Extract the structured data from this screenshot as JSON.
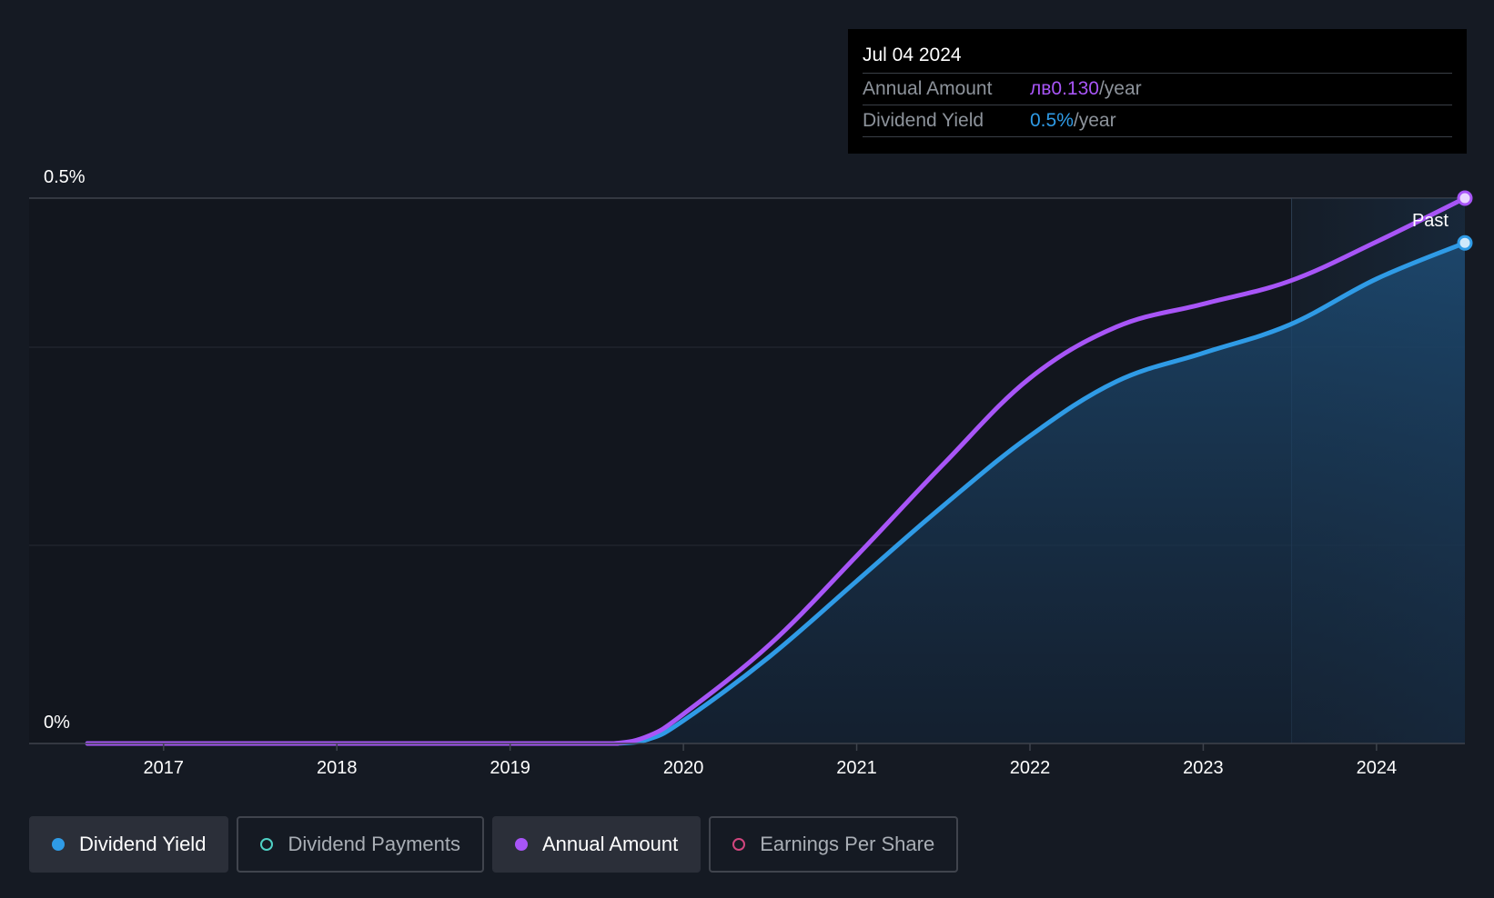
{
  "tooltip": {
    "date": "Jul 04 2024",
    "rows": [
      {
        "label": "Annual Amount",
        "value": "лв0.130",
        "unit": "/year"
      },
      {
        "label": "Dividend Yield",
        "value": "0.5%",
        "unit": "/year"
      }
    ]
  },
  "legend": [
    {
      "label": "Dividend Yield",
      "color": "#2f9be6",
      "active": true,
      "icon": "filled-dot-icon"
    },
    {
      "label": "Dividend Payments",
      "color": "#4fd1c5",
      "active": false,
      "icon": "hollow-dot-icon"
    },
    {
      "label": "Annual Amount",
      "color": "#a855f7",
      "active": true,
      "icon": "filled-dot-icon"
    },
    {
      "label": "Earnings Per Share",
      "color": "#d1467e",
      "active": false,
      "icon": "hollow-dot-icon"
    }
  ],
  "colors": {
    "background": "#151a23",
    "yield_line": "#2f9be6",
    "amount_line": "#a855f7",
    "grid": "#2a2f38"
  },
  "chart_data": {
    "type": "line",
    "x_ticks": [
      "2017",
      "2018",
      "2019",
      "2020",
      "2021",
      "2022",
      "2023",
      "2024"
    ],
    "y_ticks": [
      "0%",
      "0.5%"
    ],
    "ylim": [
      0,
      0.5
    ],
    "xlim": [
      2016.56,
      2024.51
    ],
    "past_label": "Past",
    "past_start": 2023.51,
    "series": [
      {
        "name": "Dividend Yield",
        "color": "#2f9be6",
        "x": [
          2016.56,
          2019.3,
          2019.6,
          2019.8,
          2020.0,
          2020.5,
          2021.0,
          2021.5,
          2022.0,
          2022.5,
          2023.0,
          2023.5,
          2024.0,
          2024.51
        ],
        "y": [
          0,
          0,
          0,
          0.004,
          0.021,
          0.08,
          0.149,
          0.218,
          0.282,
          0.332,
          0.358,
          0.384,
          0.426,
          0.459
        ]
      },
      {
        "name": "Annual Amount",
        "color": "#a855f7",
        "x": [
          2016.56,
          2019.3,
          2019.6,
          2019.8,
          2020.0,
          2020.5,
          2021.0,
          2021.5,
          2022.0,
          2022.5,
          2023.0,
          2023.5,
          2024.0,
          2024.51
        ],
        "y": [
          0,
          0,
          0,
          0.007,
          0.027,
          0.091,
          0.172,
          0.256,
          0.335,
          0.382,
          0.403,
          0.424,
          0.46,
          0.5
        ]
      }
    ]
  }
}
